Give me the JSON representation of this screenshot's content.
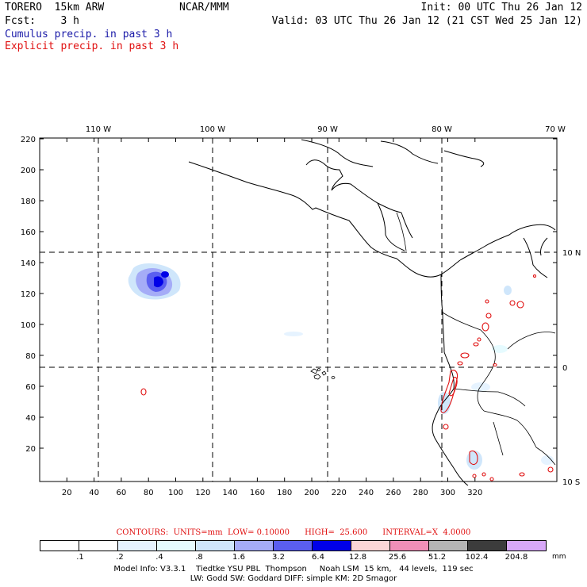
{
  "header": {
    "model": "TORERO  15km ARW",
    "center": "NCAR/MMM",
    "init": "Init: 00 UTC Thu 26 Jan 12",
    "fcst": "Fcst:    3 h",
    "valid": "Valid: 03 UTC Thu 26 Jan 12 (21 CST Wed 25 Jan 12)",
    "legend_cumulus": "Cumulus precip. in past 3 h",
    "legend_explicit": "Explicit precip. in past 3 h"
  },
  "colors": {
    "cumulus_text": "#1a1aa8",
    "explicit_text": "#e01010",
    "contour": "#e01010",
    "grid": "#000000"
  },
  "map": {
    "top_lon_labels": [
      "110 W",
      "100 W",
      "90 W",
      "80 W",
      "70 W"
    ],
    "right_lat_labels": [
      "10 N",
      "0",
      "10 S"
    ],
    "x_ticks": [
      "20",
      "40",
      "60",
      "80",
      "100",
      "120",
      "140",
      "160",
      "180",
      "200",
      "220",
      "240",
      "260",
      "280",
      "300",
      "320"
    ],
    "y_ticks": [
      "20",
      "40",
      "60",
      "80",
      "100",
      "120",
      "140",
      "160",
      "180",
      "200",
      "220"
    ],
    "grid_style": "dashed",
    "features": [
      "coastlines",
      "country-borders",
      "galapagos-islands"
    ]
  },
  "contour_info": {
    "text": "CONTOURS:  UNITS=mm  LOW= 0.10000      HIGH=  25.600      INTERVAL=X  4.0000"
  },
  "colorbar": {
    "labels": [
      ".1",
      ".2",
      ".4",
      ".8",
      "1.6",
      "3.2",
      "6.4",
      "12.8",
      "25.6",
      "51.2",
      "102.4",
      "204.8"
    ],
    "colors": [
      "#ffffff",
      "#ffffff",
      "#e6f3ff",
      "#e6fbff",
      "#cfe6fb",
      "#a5acf7",
      "#5a5ef0",
      "#0000e8",
      "#fbd6d6",
      "#f08fb8",
      "#b4b4b4",
      "#3c3c3c",
      "#d8a8f8"
    ],
    "unit": "mm"
  },
  "footer": {
    "line1": "Model Info: V3.3.1    Tiedtke YSU PBL  Thompson     Noah LSM  15 km,   44 levels,  119 sec",
    "line2": "LW: Godd SW: Goddard DIFF: simple KM: 2D Smagor"
  }
}
